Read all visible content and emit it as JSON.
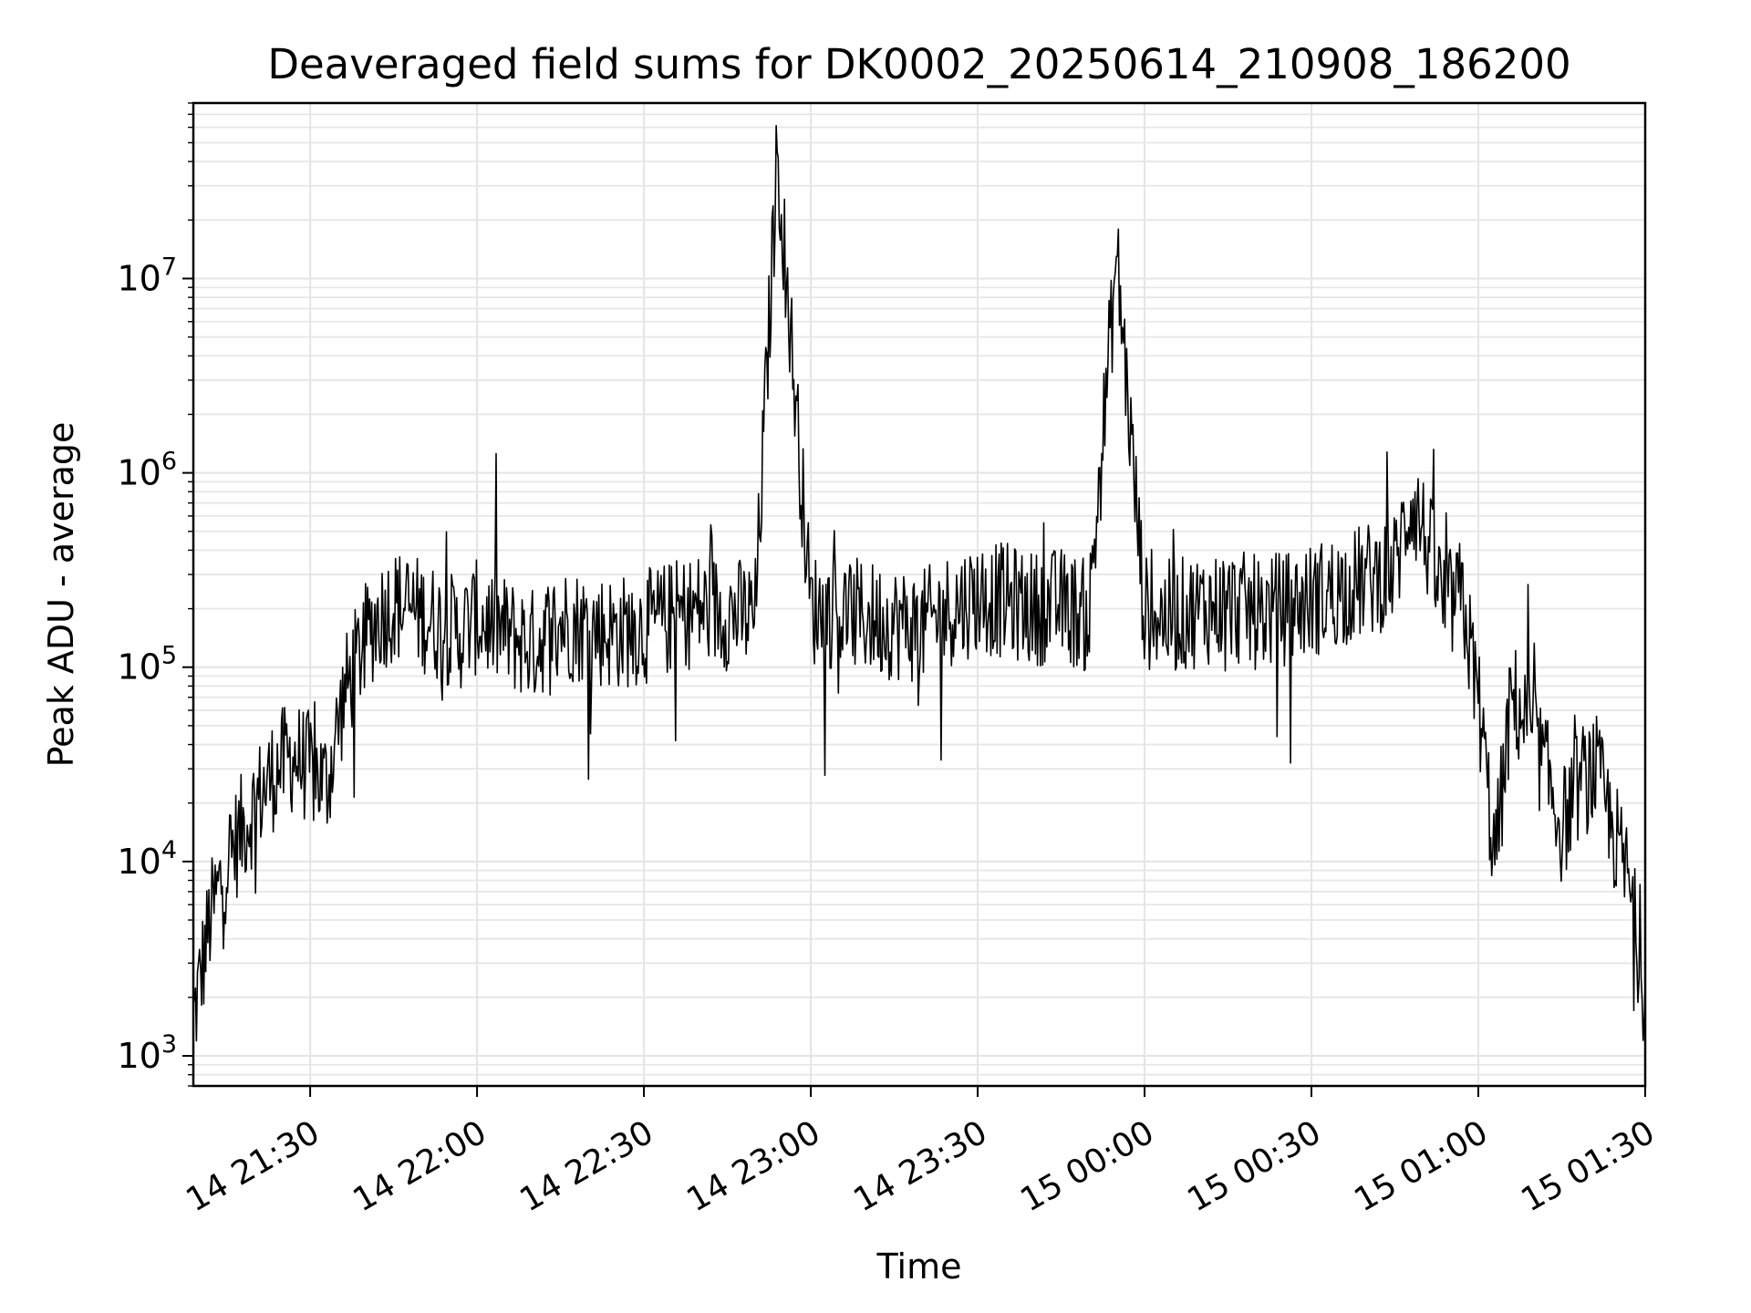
{
  "chart_data": {
    "type": "line",
    "title": "Deaveraged field sums for DK0002_20250614_210908_186200",
    "xlabel": "Time",
    "ylabel": "Peak ADU - average",
    "yscale": "log",
    "ylim": [
      700,
      80000000
    ],
    "xlim": [
      "14 21:09",
      "15 01:30"
    ],
    "grid": true,
    "line_color": "#000000",
    "x_ticks": [
      "14 21:30",
      "14 22:00",
      "14 22:30",
      "14 23:00",
      "14 23:30",
      "15 00:00",
      "15 00:30",
      "15 01:00",
      "15 01:30"
    ],
    "y_ticks": [
      {
        "base": "10",
        "exp": "3"
      },
      {
        "base": "10",
        "exp": "4"
      },
      {
        "base": "10",
        "exp": "5"
      },
      {
        "base": "10",
        "exp": "6"
      },
      {
        "base": "10",
        "exp": "7"
      }
    ],
    "series": [
      {
        "x": [
          "14 21:09",
          "14 21:12",
          "14 21:15",
          "14 21:18",
          "14 21:21",
          "14 21:24",
          "14 21:27",
          "14 21:30",
          "14 21:33",
          "14 21:36",
          "14 21:39",
          "14 21:42",
          "14 21:45",
          "14 21:48",
          "14 21:51",
          "14 21:54",
          "14 21:57",
          "14 22:00",
          "14 22:05",
          "14 22:10",
          "14 22:15",
          "14 22:20",
          "14 22:25",
          "14 22:30",
          "14 22:35",
          "14 22:40",
          "14 22:45",
          "14 22:50",
          "14 22:54",
          "14 23:00",
          "14 23:05",
          "14 23:10",
          "14 23:15",
          "14 23:20",
          "14 23:25",
          "14 23:30",
          "14 23:35",
          "14 23:40",
          "14 23:45",
          "14 23:50",
          "14 23:55",
          "15 00:00",
          "15 00:05",
          "15 00:10",
          "15 00:15",
          "15 00:20",
          "15 00:25",
          "15 00:30",
          "15 00:35",
          "15 00:40",
          "15 00:45",
          "15 00:48",
          "15 00:51",
          "15 00:54",
          "15 00:57",
          "15 01:00",
          "15 01:03",
          "15 01:06",
          "15 01:09",
          "15 01:12",
          "15 01:15",
          "15 01:18",
          "15 01:21",
          "15 01:24",
          "15 01:27",
          "15 01:30"
        ],
        "y": [
          1500,
          5000,
          10000,
          15000,
          22000,
          30000,
          35000,
          30000,
          25000,
          70000,
          120000,
          180000,
          210000,
          200000,
          180000,
          160000,
          150000,
          180000,
          150000,
          130000,
          170000,
          160000,
          150000,
          160000,
          180000,
          200000,
          190000,
          180000,
          45000000,
          200000,
          190000,
          180000,
          170000,
          160000,
          200000,
          230000,
          220000,
          200000,
          210000,
          180000,
          13000000,
          190000,
          180000,
          200000,
          210000,
          190000,
          200000,
          220000,
          250000,
          280000,
          320000,
          750000,
          420000,
          200000,
          230000,
          70000,
          10000,
          70000,
          50000,
          30000,
          15000,
          25000,
          30000,
          15000,
          8000,
          2000
        ]
      }
    ]
  }
}
